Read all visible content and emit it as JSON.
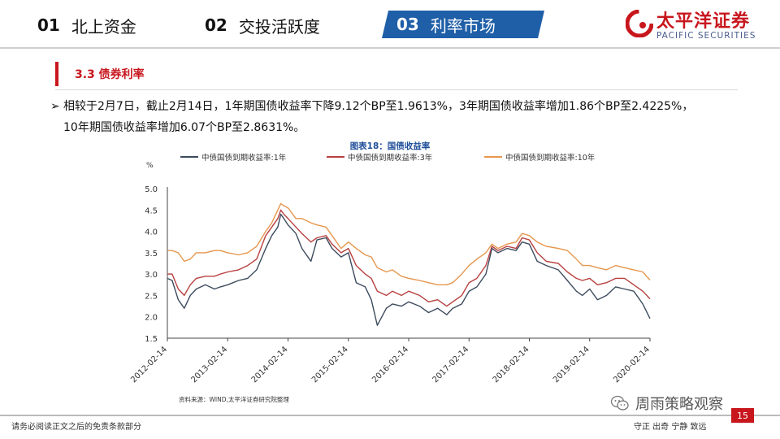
{
  "header": {
    "nav": [
      {
        "num": "01",
        "label": "北上资金"
      },
      {
        "num": "02",
        "label": "交投活跃度"
      },
      {
        "num": "03",
        "label": "利率市场"
      }
    ],
    "logo_cn": "太平洋证券",
    "logo_en": "PACIFIC SECURITIES"
  },
  "section": {
    "title": "3.3   债券利率"
  },
  "paragraph": {
    "bullet": "➢",
    "line1": "相较于2月7日，截止2月14日，1年期国债收益率下降9.12个BP至1.9613%，3年期国债收益率增加1.86个BP至2.4225%，",
    "line2": "10年期国债收益率增加6.07个BP至2.8631%。"
  },
  "chart_data": {
    "type": "line",
    "title": "图表18：国债收益率",
    "ylabel": "%",
    "ylim": [
      1.5,
      5.0
    ],
    "yticks": [
      "5.0",
      "4.5",
      "4.0",
      "3.5",
      "3.0",
      "2.5",
      "2.0",
      "1.5"
    ],
    "xticks": [
      "2012-02-14",
      "2013-02-14",
      "2014-02-14",
      "2015-02-14",
      "2016-02-14",
      "2017-02-14",
      "2018-02-14",
      "2019-02-14",
      "2020-02-14"
    ],
    "legend_position": "top",
    "source": "资料来源：WIND,太平洋证券研究院整理",
    "series": [
      {
        "name": "中债国债到期收益率:1年",
        "color": "#3d4b5e",
        "x": [
          2012.12,
          2012.2,
          2012.3,
          2012.4,
          2012.5,
          2012.6,
          2012.75,
          2012.9,
          2013.0,
          2013.12,
          2013.3,
          2013.45,
          2013.6,
          2013.75,
          2013.85,
          2013.95,
          2014.0,
          2014.05,
          2014.12,
          2014.25,
          2014.35,
          2014.5,
          2014.6,
          2014.75,
          2014.85,
          2015.0,
          2015.12,
          2015.25,
          2015.4,
          2015.5,
          2015.6,
          2015.75,
          2015.85,
          2016.0,
          2016.12,
          2016.3,
          2016.45,
          2016.6,
          2016.75,
          2016.85,
          2017.0,
          2017.12,
          2017.25,
          2017.4,
          2017.5,
          2017.6,
          2017.75,
          2017.9,
          2018.0,
          2018.12,
          2018.25,
          2018.4,
          2018.6,
          2018.75,
          2018.9,
          2019.0,
          2019.12,
          2019.25,
          2019.4,
          2019.55,
          2019.7,
          2019.85,
          2020.0,
          2020.12
        ],
        "values": [
          2.9,
          2.85,
          2.4,
          2.2,
          2.5,
          2.65,
          2.75,
          2.65,
          2.7,
          2.75,
          2.85,
          2.9,
          3.1,
          3.6,
          3.9,
          4.1,
          4.4,
          4.3,
          4.15,
          3.95,
          3.6,
          3.3,
          3.8,
          3.85,
          3.6,
          3.4,
          3.5,
          2.8,
          2.7,
          2.4,
          1.8,
          2.2,
          2.3,
          2.25,
          2.35,
          2.25,
          2.1,
          2.2,
          2.05,
          2.2,
          2.3,
          2.6,
          2.7,
          3.0,
          3.6,
          3.5,
          3.6,
          3.55,
          3.75,
          3.7,
          3.3,
          3.2,
          3.1,
          2.85,
          2.6,
          2.5,
          2.65,
          2.4,
          2.5,
          2.7,
          2.65,
          2.6,
          2.3,
          1.96
        ]
      },
      {
        "name": "中债国债到期收益率:3年",
        "color": "#b8403f",
        "x": [
          2012.12,
          2012.2,
          2012.3,
          2012.4,
          2012.5,
          2012.6,
          2012.75,
          2012.9,
          2013.0,
          2013.12,
          2013.3,
          2013.45,
          2013.6,
          2013.75,
          2013.85,
          2013.95,
          2014.0,
          2014.05,
          2014.12,
          2014.25,
          2014.35,
          2014.5,
          2014.6,
          2014.75,
          2014.85,
          2015.0,
          2015.12,
          2015.25,
          2015.4,
          2015.5,
          2015.6,
          2015.75,
          2015.85,
          2016.0,
          2016.12,
          2016.3,
          2016.45,
          2016.6,
          2016.75,
          2016.85,
          2017.0,
          2017.12,
          2017.25,
          2017.4,
          2017.5,
          2017.6,
          2017.75,
          2017.9,
          2018.0,
          2018.12,
          2018.25,
          2018.4,
          2018.6,
          2018.75,
          2018.9,
          2019.0,
          2019.12,
          2019.25,
          2019.4,
          2019.55,
          2019.7,
          2019.85,
          2020.0,
          2020.12
        ],
        "values": [
          3.0,
          3.0,
          2.65,
          2.5,
          2.75,
          2.9,
          2.95,
          2.95,
          3.0,
          3.05,
          3.1,
          3.2,
          3.35,
          3.9,
          4.1,
          4.3,
          4.5,
          4.4,
          4.3,
          4.1,
          3.95,
          3.75,
          3.85,
          3.9,
          3.7,
          3.5,
          3.6,
          3.2,
          3.0,
          2.9,
          2.6,
          2.5,
          2.6,
          2.5,
          2.6,
          2.5,
          2.35,
          2.4,
          2.25,
          2.35,
          2.5,
          2.8,
          2.9,
          3.2,
          3.65,
          3.55,
          3.65,
          3.6,
          3.85,
          3.8,
          3.5,
          3.3,
          3.25,
          3.05,
          2.9,
          2.85,
          2.9,
          2.75,
          2.8,
          2.9,
          2.9,
          2.75,
          2.6,
          2.42
        ]
      },
      {
        "name": "中债国债到期收益率:10年",
        "color": "#e6974e",
        "x": [
          2012.12,
          2012.2,
          2012.3,
          2012.4,
          2012.5,
          2012.6,
          2012.75,
          2012.9,
          2013.0,
          2013.12,
          2013.3,
          2013.45,
          2013.6,
          2013.75,
          2013.85,
          2013.95,
          2014.0,
          2014.05,
          2014.12,
          2014.25,
          2014.35,
          2014.5,
          2014.6,
          2014.75,
          2014.85,
          2015.0,
          2015.12,
          2015.25,
          2015.4,
          2015.5,
          2015.6,
          2015.75,
          2015.85,
          2016.0,
          2016.12,
          2016.3,
          2016.45,
          2016.6,
          2016.75,
          2016.85,
          2017.0,
          2017.12,
          2017.25,
          2017.4,
          2017.5,
          2017.6,
          2017.75,
          2017.9,
          2018.0,
          2018.12,
          2018.25,
          2018.4,
          2018.6,
          2018.75,
          2018.9,
          2019.0,
          2019.12,
          2019.25,
          2019.4,
          2019.55,
          2019.7,
          2019.85,
          2020.0,
          2020.12
        ],
        "values": [
          3.55,
          3.55,
          3.5,
          3.3,
          3.35,
          3.5,
          3.5,
          3.55,
          3.55,
          3.5,
          3.45,
          3.5,
          3.65,
          4.0,
          4.2,
          4.5,
          4.65,
          4.6,
          4.55,
          4.3,
          4.3,
          4.2,
          4.15,
          4.1,
          3.9,
          3.6,
          3.75,
          3.6,
          3.45,
          3.4,
          3.15,
          3.05,
          3.1,
          2.95,
          2.9,
          2.85,
          2.8,
          2.75,
          2.75,
          2.8,
          3.0,
          3.2,
          3.35,
          3.5,
          3.7,
          3.6,
          3.7,
          3.75,
          3.95,
          3.9,
          3.75,
          3.65,
          3.6,
          3.55,
          3.35,
          3.2,
          3.2,
          3.15,
          3.1,
          3.2,
          3.15,
          3.1,
          3.05,
          2.86
        ]
      }
    ]
  },
  "watermark": "周雨策略观察",
  "footer": {
    "left": "请务必阅读正文之后的免责条款部分",
    "right": "守正  出奇  宁静  致远",
    "page": "15"
  }
}
